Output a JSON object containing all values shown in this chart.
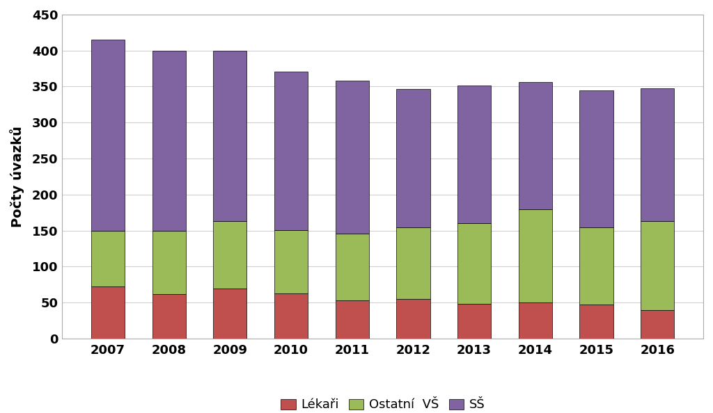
{
  "years": [
    2007,
    2008,
    2009,
    2010,
    2011,
    2012,
    2013,
    2014,
    2015,
    2016
  ],
  "lekari": [
    72,
    62,
    70,
    63,
    53,
    55,
    48,
    50,
    47,
    40
  ],
  "ostatni_vs": [
    78,
    88,
    93,
    88,
    93,
    100,
    112,
    130,
    108,
    123
  ],
  "ss": [
    265,
    250,
    237,
    220,
    212,
    192,
    191,
    176,
    190,
    185
  ],
  "color_lekari": "#c0504d",
  "color_ostatni": "#9bbb59",
  "color_ss": "#8064a2",
  "ylabel": "Počty úvazků",
  "ylim": [
    0,
    450
  ],
  "yticks": [
    0,
    50,
    100,
    150,
    200,
    250,
    300,
    350,
    400,
    450
  ],
  "legend_lekari": "Lékaři",
  "legend_ostatni": "Ostatní  VŠ",
  "legend_ss": "SŠ",
  "bar_width": 0.55,
  "background_color": "#ffffff",
  "grid_color": "#d0d0d0",
  "font_size_ticks": 13,
  "font_size_ylabel": 14,
  "font_size_legend": 13,
  "edge_color": "#000000"
}
